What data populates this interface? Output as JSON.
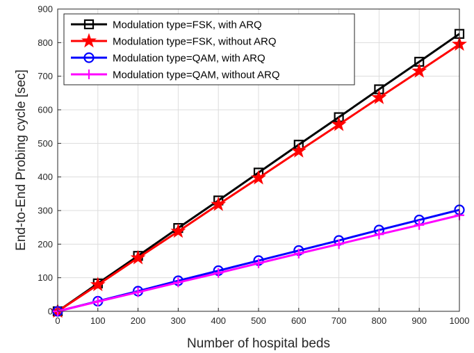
{
  "chart_data": {
    "type": "line",
    "title": "",
    "xlabel": "Number of hospital beds",
    "ylabel": "End-to-End Probing cycle [sec]",
    "xlim": [
      0,
      1000
    ],
    "ylim": [
      0,
      900
    ],
    "xticks": [
      0,
      100,
      200,
      300,
      400,
      500,
      600,
      700,
      800,
      900,
      1000
    ],
    "yticks": [
      0,
      100,
      200,
      300,
      400,
      500,
      600,
      700,
      800,
      900
    ],
    "grid": true,
    "legend_position": "top-left",
    "x": [
      0,
      100,
      200,
      300,
      400,
      500,
      600,
      700,
      800,
      900,
      1000
    ],
    "series": [
      {
        "name": "Modulation type=FSK, with ARQ",
        "color": "#000000",
        "marker": "square",
        "values": [
          0,
          83,
          165,
          248,
          330,
          413,
          496,
          578,
          661,
          743,
          826
        ]
      },
      {
        "name": "Modulation type=FSK, without ARQ",
        "color": "#ff0000",
        "marker": "star",
        "values": [
          0,
          79,
          159,
          238,
          318,
          397,
          477,
          556,
          636,
          715,
          795
        ]
      },
      {
        "name": "Modulation type=QAM, with ARQ",
        "color": "#0000ff",
        "marker": "circle",
        "values": [
          0,
          30,
          60,
          91,
          121,
          151,
          181,
          211,
          242,
          272,
          302
        ]
      },
      {
        "name": "Modulation type=QAM, without ARQ",
        "color": "#ff00ff",
        "marker": "plus",
        "values": [
          0,
          29,
          57,
          86,
          114,
          143,
          172,
          200,
          229,
          257,
          286
        ]
      }
    ]
  }
}
